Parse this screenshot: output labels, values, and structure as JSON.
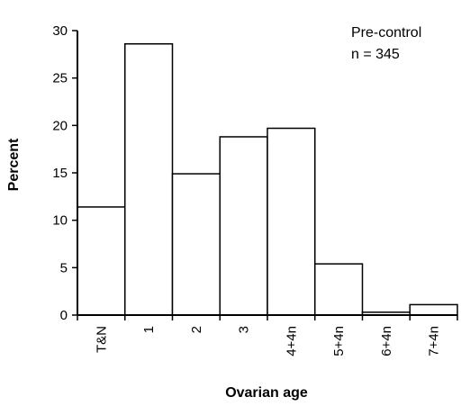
{
  "chart_data": {
    "type": "bar",
    "categories": [
      "T&N",
      "1",
      "2",
      "3",
      "4+4n",
      "5+4n",
      "6+4n",
      "7+4n"
    ],
    "values": [
      11.4,
      28.6,
      14.9,
      18.8,
      19.7,
      5.4,
      0.3,
      1.1
    ],
    "ylabel": "Percent",
    "xlabel": "Ovarian age",
    "ylim": [
      0,
      30
    ],
    "yticks": [
      0,
      5,
      10,
      15,
      20,
      25,
      30
    ],
    "grid": false,
    "annotation": {
      "line1": "Pre-control",
      "line2": "n = 345"
    }
  }
}
